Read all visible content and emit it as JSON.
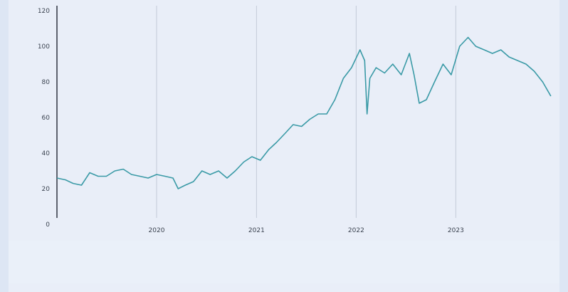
{
  "chart_data": {
    "type": "line",
    "title": "",
    "xlabel": "",
    "ylabel": "",
    "ylim": [
      0,
      120
    ],
    "xlim": [
      "2019-01-01",
      "2023-12-31"
    ],
    "yticks": [
      0,
      20,
      40,
      60,
      80,
      100,
      120
    ],
    "xticks": [
      {
        "date": "2020-01-01",
        "label": "2020"
      },
      {
        "date": "2021-01-01",
        "label": "2021"
      },
      {
        "date": "2022-01-01",
        "label": "2022"
      },
      {
        "date": "2023-01-01",
        "label": "2023"
      }
    ],
    "grid": {
      "vertical": true,
      "horizontal": false
    },
    "colors": {
      "line": "#3a9aa6",
      "grid": "#c4cbd8",
      "axis": "#2f3440"
    },
    "series": [
      {
        "x": [
          "2019-01-01",
          "2019-02-01",
          "2019-03-01",
          "2019-04-01",
          "2019-05-01",
          "2019-06-01",
          "2019-07-01",
          "2019-08-01",
          "2019-09-01",
          "2019-10-01",
          "2019-11-01",
          "2019-12-01",
          "2020-01-01",
          "2020-02-01",
          "2020-03-01",
          "2020-03-20",
          "2020-04-15",
          "2020-05-15",
          "2020-06-15",
          "2020-07-15",
          "2020-08-15",
          "2020-09-15",
          "2020-10-15",
          "2020-11-15",
          "2020-12-15",
          "2021-01-15",
          "2021-02-15",
          "2021-03-15",
          "2021-04-15",
          "2021-05-15",
          "2021-06-15",
          "2021-07-15",
          "2021-08-15",
          "2021-09-15",
          "2021-10-15",
          "2021-11-15",
          "2021-12-15",
          "2022-01-15",
          "2022-02-01",
          "2022-02-10",
          "2022-02-20",
          "2022-03-15",
          "2022-04-15",
          "2022-05-15",
          "2022-06-15",
          "2022-07-15",
          "2022-08-01",
          "2022-08-20",
          "2022-09-15",
          "2022-10-15",
          "2022-11-15",
          "2022-12-15",
          "2023-01-15",
          "2023-02-15",
          "2023-03-15",
          "2023-04-15",
          "2023-05-15",
          "2023-06-15",
          "2023-07-15",
          "2023-08-15",
          "2023-09-15",
          "2023-10-15",
          "2023-11-15",
          "2023-12-15"
        ],
        "y": [
          26,
          25,
          23,
          22,
          29,
          27,
          27,
          30,
          31,
          28,
          27,
          26,
          28,
          27,
          26,
          20,
          22,
          24,
          30,
          28,
          30,
          26,
          30,
          35,
          38,
          36,
          42,
          46,
          51,
          56,
          55,
          59,
          62,
          62,
          70,
          82,
          88,
          98,
          92,
          62,
          82,
          88,
          85,
          90,
          84,
          96,
          84,
          68,
          70,
          80,
          90,
          84,
          100,
          105,
          100,
          98,
          96,
          98,
          94,
          92,
          90,
          86,
          80,
          72
        ]
      }
    ]
  }
}
